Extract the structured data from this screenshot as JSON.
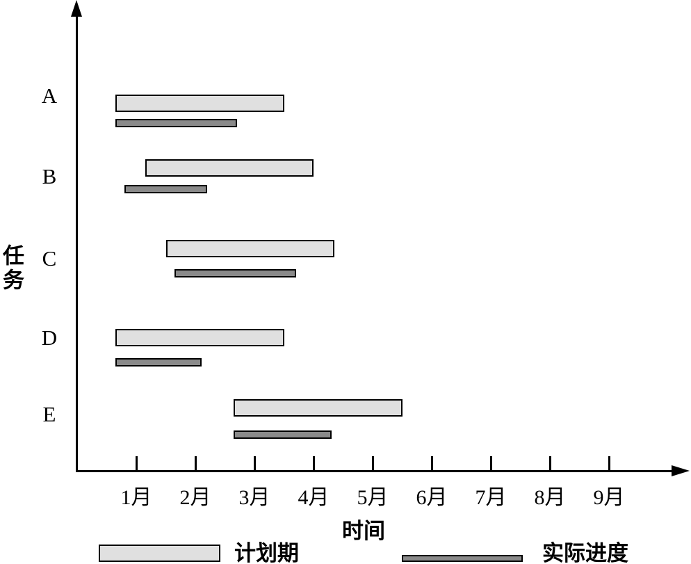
{
  "chart_data": {
    "type": "bar",
    "subtype": "gantt-horizontal",
    "title": "",
    "x_axis": {
      "label": "时间",
      "unit": "month",
      "tick_values": [
        1,
        2,
        3,
        4,
        5,
        6,
        7,
        8,
        9
      ],
      "tick_labels": [
        "1月",
        "2月",
        "3月",
        "4月",
        "5月",
        "6月",
        "7月",
        "8月",
        "9月"
      ],
      "range": [
        0,
        10.3
      ],
      "grid": false
    },
    "y_axis": {
      "label": "任务",
      "categories": [
        "A",
        "B",
        "C",
        "D",
        "E"
      ]
    },
    "series": [
      {
        "name": "计划期",
        "role": "planned"
      },
      {
        "name": "实际进度",
        "role": "actual"
      }
    ],
    "tasks": [
      {
        "name": "A",
        "planned_start": 0.65,
        "planned_end": 3.5,
        "actual_start": 0.65,
        "actual_end": 2.7
      },
      {
        "name": "B",
        "planned_start": 1.15,
        "planned_end": 4.0,
        "actual_start": 0.8,
        "actual_end": 2.2
      },
      {
        "name": "C",
        "planned_start": 1.5,
        "planned_end": 4.35,
        "actual_start": 1.65,
        "actual_end": 3.7
      },
      {
        "name": "D",
        "planned_start": 0.65,
        "planned_end": 3.5,
        "actual_start": 0.65,
        "actual_end": 2.1
      },
      {
        "name": "E",
        "planned_start": 2.65,
        "planned_end": 5.5,
        "actual_start": 2.65,
        "actual_end": 4.3
      }
    ],
    "colors": {
      "planned_fill": "#e0e0e0",
      "actual_fill": "#8a8a8a",
      "outline": "#000000",
      "background": "#ffffff"
    },
    "legend_position": "bottom"
  }
}
